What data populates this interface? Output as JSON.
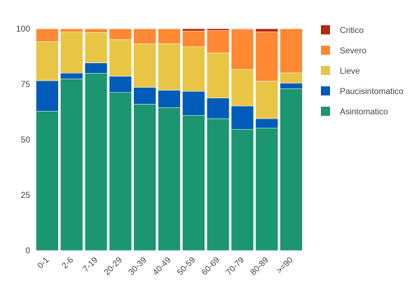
{
  "chart_data": {
    "type": "bar",
    "stacked": true,
    "categories": [
      "0-1",
      "2-6",
      "7-19",
      "20-29",
      "30-39",
      "40-49",
      "50-59",
      "60-69",
      "70-79",
      "80-89",
      ">=90"
    ],
    "series": [
      {
        "name": "Asintomatico",
        "color": "#1b9670",
        "values": [
          62.8,
          77.4,
          80.0,
          71.3,
          66.0,
          64.5,
          61.0,
          59.5,
          54.7,
          55.3,
          73.0
        ]
      },
      {
        "name": "Paucisintomatico",
        "color": "#005cb8",
        "values": [
          13.8,
          2.6,
          4.6,
          7.3,
          7.6,
          7.8,
          10.8,
          9.3,
          10.5,
          4.2,
          2.5
        ]
      },
      {
        "name": "Lieve",
        "color": "#e9c545",
        "values": [
          17.6,
          18.5,
          13.7,
          16.6,
          19.6,
          21.0,
          20.1,
          20.3,
          16.5,
          16.9,
          4.6
        ]
      },
      {
        "name": "Severo",
        "color": "#ff8833",
        "values": [
          5.8,
          1.5,
          1.7,
          4.8,
          6.8,
          6.7,
          7.1,
          10.1,
          18.0,
          22.2,
          19.9
        ]
      },
      {
        "name": "Critico",
        "color": "#b5280f",
        "values": [
          0.0,
          0.0,
          0.0,
          0.0,
          0.0,
          0.0,
          1.0,
          0.8,
          0.3,
          1.4,
          0.0
        ]
      }
    ],
    "y_ticks": [
      "0",
      "25",
      "50",
      "75",
      "100"
    ],
    "ylim": [
      0,
      100
    ],
    "legend_order": [
      "Critico",
      "Severo",
      "Lieve",
      "Paucisintomatico",
      "Asintomatico"
    ],
    "legend_position": "right",
    "grid": false
  }
}
